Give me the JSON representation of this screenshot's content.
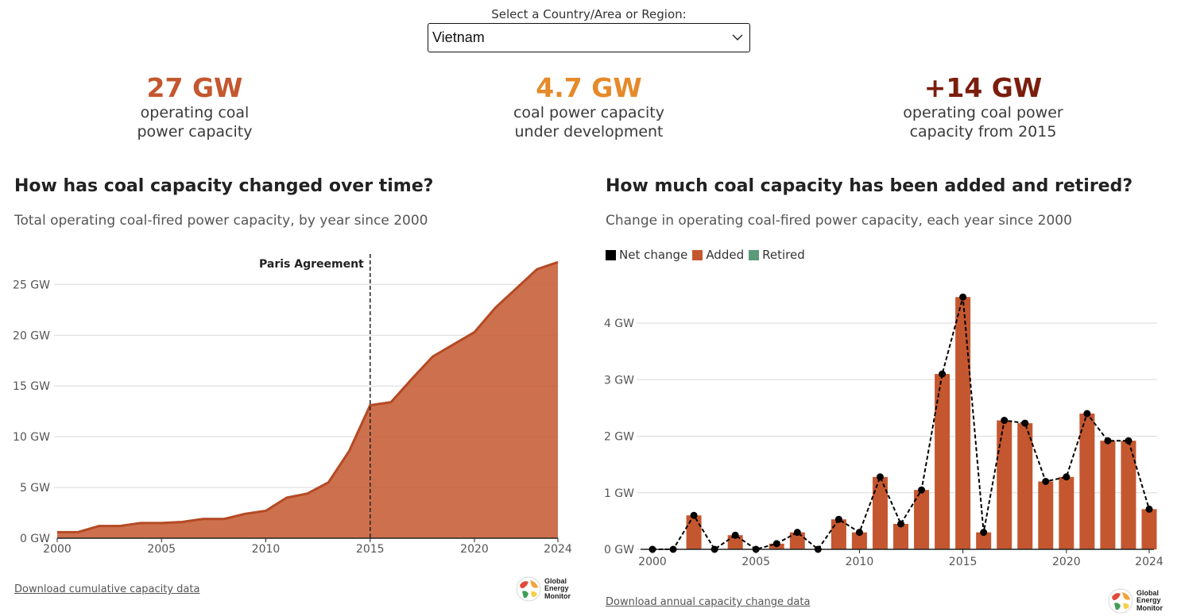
{
  "selector": {
    "label": "Select a Country/Area or Region:",
    "value": "Vietnam"
  },
  "stats": [
    {
      "value": "27 GW",
      "line1": "operating coal",
      "line2": "power capacity",
      "color": "#c4572f"
    },
    {
      "value": "4.7 GW",
      "line1": "coal power capacity",
      "line2": "under development",
      "color": "#e58a2a"
    },
    {
      "value": "+14 GW",
      "line1": "operating coal power",
      "line2": "capacity from 2015",
      "color": "#7a1e0e"
    }
  ],
  "left_panel": {
    "title": "How has coal capacity changed over time?",
    "subtitle": "Total operating coal-fired power capacity, by year since 2000",
    "annotation": "Paris Agreement",
    "download": "Download cumulative capacity data"
  },
  "right_panel": {
    "title": "How much coal capacity has been added and retired?",
    "subtitle": "Change in operating coal-fired power capacity, each year since 2000",
    "download": "Download annual capacity change data",
    "legend": [
      {
        "label": "Net change",
        "color": "#000000"
      },
      {
        "label": "Added",
        "color": "#c4572f"
      },
      {
        "label": "Retired",
        "color": "#5b9b7a"
      }
    ]
  },
  "logo": {
    "line1": "Global",
    "line2": "Energy",
    "line3": "Monitor"
  },
  "chart_data": [
    {
      "type": "area",
      "title": "How has coal capacity changed over time?",
      "x": [
        2000,
        2001,
        2002,
        2003,
        2004,
        2005,
        2006,
        2007,
        2008,
        2009,
        2010,
        2011,
        2012,
        2013,
        2014,
        2015,
        2016,
        2017,
        2018,
        2019,
        2020,
        2021,
        2022,
        2023,
        2024
      ],
      "values": [
        0.6,
        0.6,
        1.2,
        1.2,
        1.5,
        1.5,
        1.6,
        1.9,
        1.9,
        2.4,
        2.7,
        4.0,
        4.4,
        5.5,
        8.6,
        13.1,
        13.4,
        15.7,
        17.9,
        19.1,
        20.3,
        22.7,
        24.6,
        26.5,
        27.2
      ],
      "xlim": [
        2000,
        2024
      ],
      "ylim": [
        0,
        28
      ],
      "yticks": [
        0,
        5,
        10,
        15,
        20,
        25
      ],
      "ytick_labels": [
        "0 GW",
        "5 GW",
        "10 GW",
        "15 GW",
        "20 GW",
        "25 GW"
      ],
      "xticks": [
        2000,
        2005,
        2010,
        2015,
        2020,
        2024
      ],
      "annotation_x": 2015,
      "color": "#c4572f",
      "grid": true
    },
    {
      "type": "bar",
      "title": "How much coal capacity has been added and retired?",
      "categories": [
        2000,
        2001,
        2002,
        2003,
        2004,
        2005,
        2006,
        2007,
        2008,
        2009,
        2010,
        2011,
        2012,
        2013,
        2014,
        2015,
        2016,
        2017,
        2018,
        2019,
        2020,
        2021,
        2022,
        2023,
        2024
      ],
      "series": [
        {
          "name": "Added",
          "values": [
            0,
            0,
            0.6,
            0,
            0.25,
            0,
            0.1,
            0.3,
            0,
            0.53,
            0.3,
            1.28,
            0.45,
            1.05,
            3.1,
            4.46,
            0.3,
            2.28,
            2.23,
            1.2,
            1.28,
            2.4,
            1.92,
            1.92,
            0.71
          ]
        },
        {
          "name": "Net change",
          "values": [
            0,
            0,
            0.6,
            0,
            0.25,
            0,
            0.1,
            0.3,
            0,
            0.53,
            0.3,
            1.28,
            0.45,
            1.05,
            3.1,
            4.46,
            0.3,
            2.28,
            2.23,
            1.2,
            1.28,
            2.4,
            1.92,
            1.92,
            0.71
          ]
        },
        {
          "name": "Retired",
          "values": [
            0,
            0,
            0,
            0,
            0,
            0,
            0,
            0,
            0,
            0,
            0,
            0,
            0,
            0,
            0,
            0,
            0,
            0,
            0,
            0,
            0,
            0,
            0,
            0,
            0
          ]
        }
      ],
      "ylim": [
        0,
        4.8
      ],
      "yticks": [
        0,
        1,
        2,
        3,
        4
      ],
      "ytick_labels": [
        "0 GW",
        "1 GW",
        "2 GW",
        "3 GW",
        "4 GW"
      ],
      "xticks": [
        2000,
        2005,
        2010,
        2015,
        2020,
        2024
      ],
      "legend": "top-left",
      "grid": true
    }
  ]
}
